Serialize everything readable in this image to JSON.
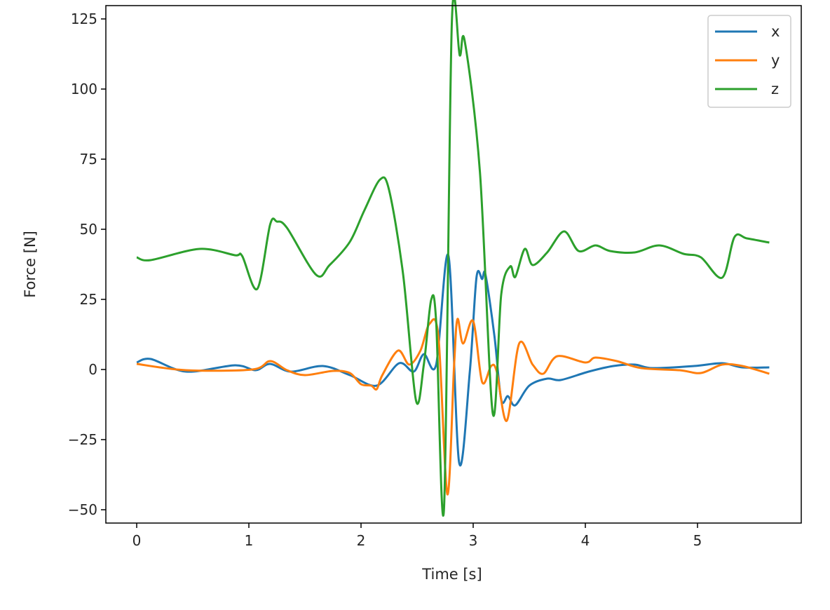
{
  "chart_data": {
    "type": "line",
    "title": "",
    "xlabel": "Time [s]",
    "ylabel": "Force [N]",
    "xlim": [
      -0.275,
      5.925
    ],
    "ylim": [
      -54.75,
      129.75
    ],
    "xticks": [
      0,
      1,
      2,
      3,
      4,
      5
    ],
    "xtick_labels": [
      "0",
      "1",
      "2",
      "3",
      "4",
      "5"
    ],
    "yticks": [
      -50,
      -25,
      0,
      25,
      50,
      75,
      100,
      125
    ],
    "ytick_labels": [
      "−50",
      "−25",
      "0",
      "25",
      "50",
      "75",
      "100",
      "125"
    ],
    "grid": false,
    "legend_position": "top-right",
    "series": [
      {
        "name": "x",
        "color": "#1f77b4",
        "t": [
          0,
          0.125,
          0.44,
          0.875,
          1.06,
          1.19,
          1.375,
          1.66,
          1.9,
          2.14,
          2.34,
          2.47,
          2.56,
          2.67,
          2.78,
          2.875,
          2.97,
          3.03,
          3.08,
          3.11,
          3.19,
          3.25,
          3.31,
          3.375,
          3.5,
          3.66,
          3.78,
          4.03,
          4.25,
          4.44,
          4.6,
          4.97,
          5.22,
          5.4,
          5.64
        ],
        "values": [
          2.5,
          3.75,
          -0.75,
          1.5,
          -0.25,
          2,
          -0.75,
          1.25,
          -2,
          -5.75,
          2.25,
          -0.75,
          5.5,
          1.75,
          40.5,
          -33.25,
          -0.75,
          33,
          32.25,
          33.75,
          11.75,
          -10.75,
          -9.5,
          -12.75,
          -5.75,
          -3.25,
          -3.75,
          -0.75,
          1.25,
          1.75,
          0.5,
          1.25,
          2.25,
          0.75,
          0.75
        ]
      },
      {
        "name": "y",
        "color": "#ff7f0e",
        "t": [
          0,
          0.44,
          1.03,
          1.19,
          1.34,
          1.5,
          1.75,
          1.9,
          2.0,
          2.09,
          2.14,
          2.19,
          2.33,
          2.43,
          2.53,
          2.61,
          2.69,
          2.77,
          2.83,
          2.86,
          2.91,
          3.0,
          3.08,
          3.16,
          3.21,
          3.3,
          3.41,
          3.53,
          3.625,
          3.75,
          4.0,
          4.09,
          4.28,
          4.5,
          4.84,
          5.03,
          5.22,
          5.4,
          5.64
        ],
        "values": [
          2,
          -0.25,
          0,
          3,
          -0.25,
          -2,
          -0.5,
          -1.25,
          -5.25,
          -5.75,
          -7,
          -2,
          6.75,
          1.75,
          6.75,
          16.25,
          11.75,
          -44.5,
          1.75,
          18,
          9.25,
          17.25,
          -4.5,
          1.25,
          -0.75,
          -18.25,
          9.25,
          1.75,
          -1.5,
          4.75,
          2.5,
          4.25,
          3,
          0.5,
          -0.25,
          -1.25,
          1.75,
          1.25,
          -1.5
        ]
      },
      {
        "name": "z",
        "color": "#2ca02c",
        "t": [
          0,
          0.125,
          0.56,
          0.875,
          0.94,
          1.075,
          1.19,
          1.25,
          1.34,
          1.6,
          1.72,
          1.9,
          2.03,
          2.17,
          2.25,
          2.375,
          2.49,
          2.56,
          2.625,
          2.67,
          2.74,
          2.81,
          2.88,
          2.925,
          3.06,
          3.175,
          3.25,
          3.33,
          3.375,
          3.46,
          3.53,
          3.66,
          3.81,
          3.94,
          4.09,
          4.22,
          4.44,
          4.66,
          4.875,
          5.03,
          5.22,
          5.33,
          5.44,
          5.64
        ],
        "values": [
          40,
          39,
          43,
          40.75,
          40.5,
          28.75,
          51.75,
          52.75,
          50.5,
          33.75,
          37.25,
          45.5,
          56.75,
          67.75,
          64,
          34,
          -11,
          1.75,
          24.75,
          17,
          -49.5,
          124,
          112,
          117,
          70.5,
          -15.75,
          26.75,
          36.75,
          33,
          43,
          37.25,
          41.75,
          49.25,
          42.25,
          44.25,
          42.25,
          41.75,
          44.25,
          41.25,
          40,
          32.75,
          47.25,
          46.75,
          45.25
        ]
      }
    ]
  }
}
